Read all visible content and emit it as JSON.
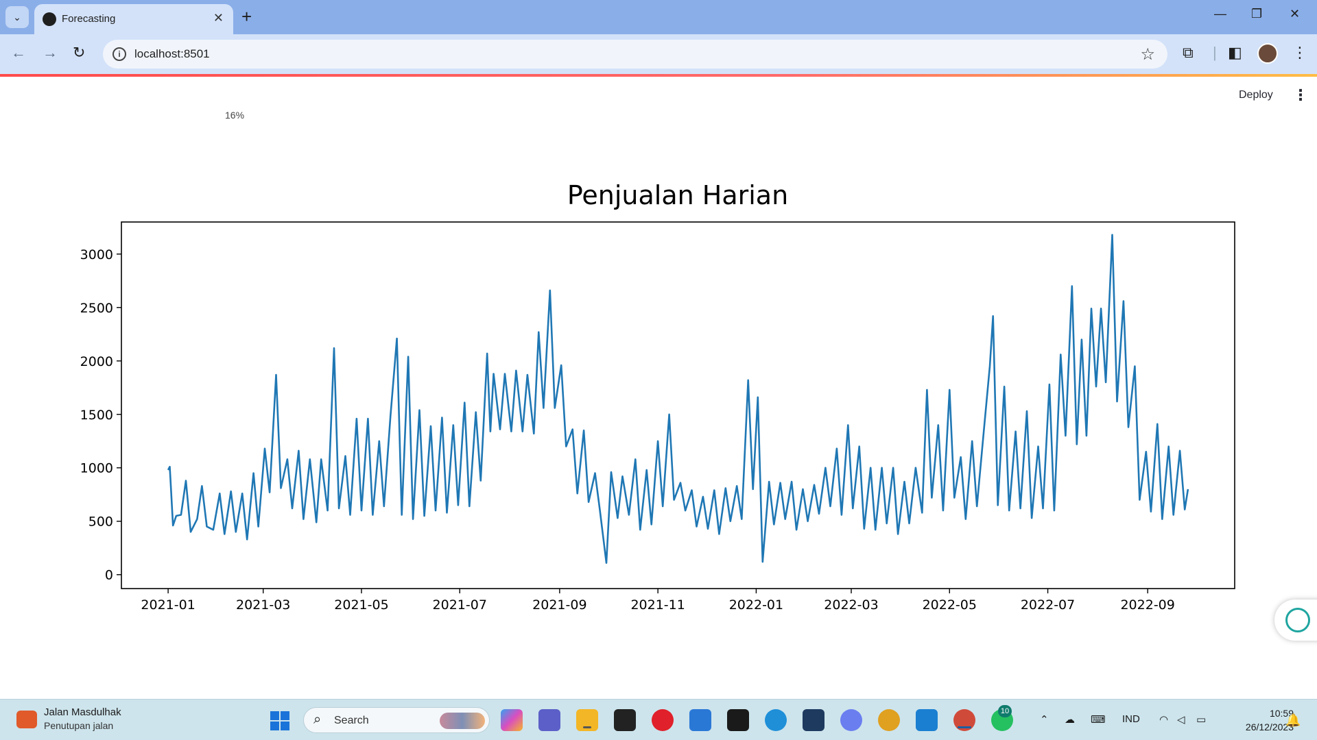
{
  "browser": {
    "tab_title": "Forecasting",
    "url": "localhost:8501",
    "new_tab_symbol": "+",
    "close_symbol": "✕",
    "minimize_symbol": "—",
    "restore_symbol": "❐",
    "window_close_symbol": "✕",
    "back_symbol": "←",
    "forward_symbol": "→",
    "reload_symbol": "↻",
    "star_symbol": "☆",
    "menu_symbol": "⋮"
  },
  "app": {
    "deploy_label": "Deploy",
    "menu_symbol": "⋮",
    "progress_text": "16%",
    "accent_color": "#ff4b4b"
  },
  "chart_data": {
    "type": "line",
    "title": "Penjualan Harian",
    "xlabel": "",
    "ylabel": "",
    "x_tick_labels": [
      "2021-01",
      "2021-03",
      "2021-05",
      "2021-07",
      "2021-09",
      "2021-11",
      "2022-01",
      "2022-03",
      "2022-05",
      "2022-07",
      "2022-09"
    ],
    "y_ticks": [
      0,
      500,
      1000,
      1500,
      2000,
      2500,
      3000
    ],
    "ylim": [
      -130,
      3300
    ],
    "xlim": [
      "2020-12-03",
      "2022-10-25"
    ],
    "grid": false,
    "line_color": "#1f77b4",
    "series": [
      {
        "points": [
          [
            "2021-01-01",
            980
          ],
          [
            "2021-01-02",
            1010
          ],
          [
            "2021-01-04",
            460
          ],
          [
            "2021-01-06",
            550
          ],
          [
            "2021-01-09",
            560
          ],
          [
            "2021-01-12",
            880
          ],
          [
            "2021-01-15",
            400
          ],
          [
            "2021-01-19",
            520
          ],
          [
            "2021-01-22",
            830
          ],
          [
            "2021-01-25",
            450
          ],
          [
            "2021-01-29",
            420
          ],
          [
            "2021-02-02",
            760
          ],
          [
            "2021-02-05",
            380
          ],
          [
            "2021-02-09",
            780
          ],
          [
            "2021-02-12",
            400
          ],
          [
            "2021-02-16",
            760
          ],
          [
            "2021-02-19",
            330
          ],
          [
            "2021-02-23",
            950
          ],
          [
            "2021-02-26",
            450
          ],
          [
            "2021-03-02",
            1180
          ],
          [
            "2021-03-05",
            770
          ],
          [
            "2021-03-09",
            1870
          ],
          [
            "2021-03-12",
            810
          ],
          [
            "2021-03-16",
            1080
          ],
          [
            "2021-03-19",
            620
          ],
          [
            "2021-03-23",
            1160
          ],
          [
            "2021-03-26",
            520
          ],
          [
            "2021-03-30",
            1080
          ],
          [
            "2021-04-03",
            490
          ],
          [
            "2021-04-06",
            1080
          ],
          [
            "2021-04-10",
            600
          ],
          [
            "2021-04-14",
            2120
          ],
          [
            "2021-04-17",
            620
          ],
          [
            "2021-04-21",
            1110
          ],
          [
            "2021-04-24",
            560
          ],
          [
            "2021-04-28",
            1460
          ],
          [
            "2021-05-01",
            600
          ],
          [
            "2021-05-05",
            1460
          ],
          [
            "2021-05-08",
            560
          ],
          [
            "2021-05-12",
            1250
          ],
          [
            "2021-05-15",
            640
          ],
          [
            "2021-05-19",
            1480
          ],
          [
            "2021-05-23",
            2210
          ],
          [
            "2021-05-26",
            560
          ],
          [
            "2021-05-30",
            2040
          ],
          [
            "2021-06-02",
            520
          ],
          [
            "2021-06-06",
            1540
          ],
          [
            "2021-06-09",
            550
          ],
          [
            "2021-06-13",
            1390
          ],
          [
            "2021-06-16",
            600
          ],
          [
            "2021-06-20",
            1470
          ],
          [
            "2021-06-23",
            580
          ],
          [
            "2021-06-27",
            1400
          ],
          [
            "2021-06-30",
            650
          ],
          [
            "2021-07-04",
            1610
          ],
          [
            "2021-07-07",
            640
          ],
          [
            "2021-07-11",
            1520
          ],
          [
            "2021-07-14",
            880
          ],
          [
            "2021-07-18",
            2070
          ],
          [
            "2021-07-20",
            1340
          ],
          [
            "2021-07-22",
            1880
          ],
          [
            "2021-07-26",
            1360
          ],
          [
            "2021-07-29",
            1880
          ],
          [
            "2021-08-02",
            1340
          ],
          [
            "2021-08-05",
            1910
          ],
          [
            "2021-08-09",
            1340
          ],
          [
            "2021-08-12",
            1870
          ],
          [
            "2021-08-16",
            1320
          ],
          [
            "2021-08-19",
            2270
          ],
          [
            "2021-08-22",
            1560
          ],
          [
            "2021-08-26",
            2660
          ],
          [
            "2021-08-29",
            1560
          ],
          [
            "2021-09-02",
            1960
          ],
          [
            "2021-09-05",
            1200
          ],
          [
            "2021-09-09",
            1360
          ],
          [
            "2021-09-12",
            760
          ],
          [
            "2021-09-16",
            1350
          ],
          [
            "2021-09-19",
            680
          ],
          [
            "2021-09-23",
            950
          ],
          [
            "2021-09-26",
            600
          ],
          [
            "2021-09-30",
            110
          ],
          [
            "2021-10-03",
            960
          ],
          [
            "2021-10-07",
            530
          ],
          [
            "2021-10-10",
            920
          ],
          [
            "2021-10-14",
            560
          ],
          [
            "2021-10-18",
            1080
          ],
          [
            "2021-10-21",
            420
          ],
          [
            "2021-10-25",
            980
          ],
          [
            "2021-10-28",
            470
          ],
          [
            "2021-11-01",
            1250
          ],
          [
            "2021-11-04",
            640
          ],
          [
            "2021-11-08",
            1500
          ],
          [
            "2021-11-11",
            700
          ],
          [
            "2021-11-15",
            860
          ],
          [
            "2021-11-18",
            600
          ],
          [
            "2021-11-22",
            790
          ],
          [
            "2021-11-25",
            450
          ],
          [
            "2021-11-29",
            730
          ],
          [
            "2021-12-02",
            430
          ],
          [
            "2021-12-06",
            790
          ],
          [
            "2021-12-09",
            380
          ],
          [
            "2021-12-13",
            810
          ],
          [
            "2021-12-16",
            500
          ],
          [
            "2021-12-20",
            830
          ],
          [
            "2021-12-23",
            520
          ],
          [
            "2021-12-27",
            1820
          ],
          [
            "2021-12-30",
            800
          ],
          [
            "2022-01-02",
            1660
          ],
          [
            "2022-01-05",
            120
          ],
          [
            "2022-01-09",
            870
          ],
          [
            "2022-01-12",
            470
          ],
          [
            "2022-01-16",
            860
          ],
          [
            "2022-01-19",
            520
          ],
          [
            "2022-01-23",
            870
          ],
          [
            "2022-01-26",
            420
          ],
          [
            "2022-01-30",
            800
          ],
          [
            "2022-02-02",
            500
          ],
          [
            "2022-02-06",
            840
          ],
          [
            "2022-02-09",
            570
          ],
          [
            "2022-02-13",
            1000
          ],
          [
            "2022-02-16",
            640
          ],
          [
            "2022-02-20",
            1180
          ],
          [
            "2022-02-23",
            560
          ],
          [
            "2022-02-27",
            1400
          ],
          [
            "2022-03-02",
            620
          ],
          [
            "2022-03-06",
            1200
          ],
          [
            "2022-03-09",
            430
          ],
          [
            "2022-03-13",
            1000
          ],
          [
            "2022-03-16",
            420
          ],
          [
            "2022-03-20",
            1000
          ],
          [
            "2022-03-23",
            480
          ],
          [
            "2022-03-27",
            1000
          ],
          [
            "2022-03-30",
            380
          ],
          [
            "2022-04-03",
            870
          ],
          [
            "2022-04-06",
            480
          ],
          [
            "2022-04-10",
            1000
          ],
          [
            "2022-04-14",
            580
          ],
          [
            "2022-04-17",
            1730
          ],
          [
            "2022-04-20",
            720
          ],
          [
            "2022-04-24",
            1400
          ],
          [
            "2022-04-27",
            600
          ],
          [
            "2022-05-01",
            1730
          ],
          [
            "2022-05-04",
            720
          ],
          [
            "2022-05-08",
            1100
          ],
          [
            "2022-05-11",
            520
          ],
          [
            "2022-05-15",
            1250
          ],
          [
            "2022-05-18",
            640
          ],
          [
            "2022-05-22",
            1300
          ],
          [
            "2022-05-26",
            1950
          ],
          [
            "2022-05-28",
            2420
          ],
          [
            "2022-05-31",
            650
          ],
          [
            "2022-06-04",
            1760
          ],
          [
            "2022-06-07",
            600
          ],
          [
            "2022-06-11",
            1340
          ],
          [
            "2022-06-14",
            620
          ],
          [
            "2022-06-18",
            1530
          ],
          [
            "2022-06-21",
            530
          ],
          [
            "2022-06-25",
            1200
          ],
          [
            "2022-06-28",
            620
          ],
          [
            "2022-07-02",
            1780
          ],
          [
            "2022-07-05",
            600
          ],
          [
            "2022-07-09",
            2060
          ],
          [
            "2022-07-12",
            1300
          ],
          [
            "2022-07-16",
            2700
          ],
          [
            "2022-07-19",
            1220
          ],
          [
            "2022-07-22",
            2200
          ],
          [
            "2022-07-25",
            1300
          ],
          [
            "2022-07-28",
            2490
          ],
          [
            "2022-07-31",
            1760
          ],
          [
            "2022-08-03",
            2490
          ],
          [
            "2022-08-06",
            1800
          ],
          [
            "2022-08-10",
            3180
          ],
          [
            "2022-08-13",
            1620
          ],
          [
            "2022-08-17",
            2560
          ],
          [
            "2022-08-20",
            1380
          ],
          [
            "2022-08-24",
            1950
          ],
          [
            "2022-08-27",
            700
          ],
          [
            "2022-08-31",
            1150
          ],
          [
            "2022-09-03",
            590
          ],
          [
            "2022-09-07",
            1410
          ],
          [
            "2022-09-10",
            520
          ],
          [
            "2022-09-14",
            1200
          ],
          [
            "2022-09-17",
            560
          ],
          [
            "2022-09-21",
            1160
          ],
          [
            "2022-09-24",
            610
          ],
          [
            "2022-09-26",
            800
          ]
        ]
      }
    ]
  },
  "taskbar": {
    "news_title": "Jalan Masdulhak",
    "news_sub": "Penutupan jalan",
    "search_label": "Search",
    "whatsapp_badge": "10",
    "lang": "IND",
    "time": "10:59",
    "date": "26/12/2023"
  }
}
